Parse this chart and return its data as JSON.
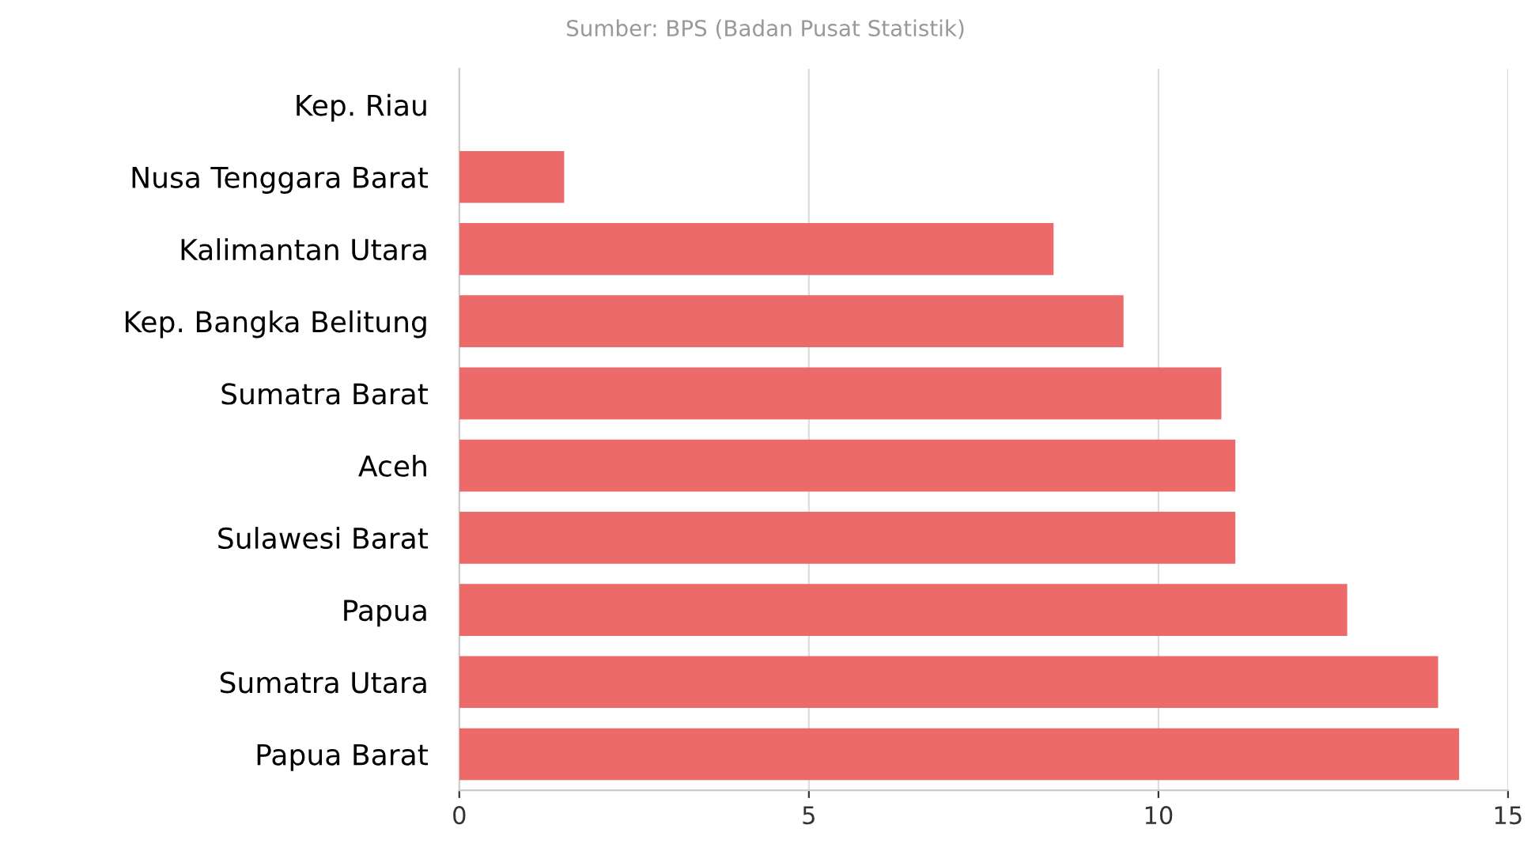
{
  "chart_data": {
    "type": "bar",
    "orientation": "horizontal",
    "annotations": [
      "Sumber: BPS (Badan Pusat Statistik)"
    ],
    "categories": [
      "Kep. Riau",
      "Nusa Tenggara Barat",
      "Kalimantan Utara",
      "Kep. Bangka Belitung",
      "Sumatra Barat",
      "Aceh",
      "Sulawesi Barat",
      "Papua",
      "Sumatra Utara",
      "Papua Barat"
    ],
    "values": [
      0,
      1.5,
      8.5,
      9.5,
      10.9,
      11.1,
      11.1,
      12.7,
      14.0,
      14.3
    ],
    "color": "#ec6a6a",
    "xlim": [
      0,
      15
    ],
    "xticks": [
      0,
      5,
      10,
      15
    ],
    "grid": "x"
  }
}
